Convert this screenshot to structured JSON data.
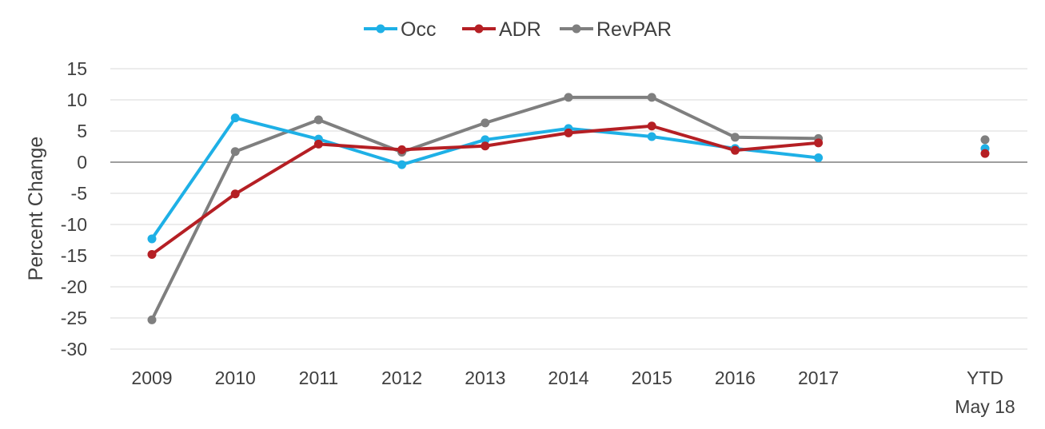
{
  "chart_data": {
    "type": "line",
    "title": "",
    "xlabel": "",
    "ylabel": "Percent Change",
    "categories": [
      "2009",
      "2010",
      "2011",
      "2012",
      "2013",
      "2014",
      "2015",
      "2016",
      "2017",
      "",
      "YTD|May 18"
    ],
    "ylim": [
      -30,
      15
    ],
    "yticks": [
      15,
      10,
      5,
      0,
      -5,
      -10,
      -15,
      -20,
      -25,
      -30
    ],
    "grid": true,
    "legend_position": "top",
    "series": [
      {
        "name": "Occ",
        "color": "#1eb0e6",
        "values": [
          -12.3,
          7.1,
          3.7,
          -0.4,
          3.6,
          5.4,
          4.1,
          2.2,
          0.7,
          null,
          2.2
        ]
      },
      {
        "name": "ADR",
        "color": "#b51f24",
        "values": [
          -14.8,
          -5.1,
          2.9,
          2.0,
          2.6,
          4.7,
          5.8,
          1.9,
          3.1,
          null,
          1.4
        ]
      },
      {
        "name": "RevPAR",
        "color": "#7f7f7f",
        "values": [
          -25.3,
          1.7,
          6.8,
          1.6,
          6.3,
          10.4,
          10.4,
          4.0,
          3.8,
          null,
          3.6
        ]
      }
    ]
  }
}
